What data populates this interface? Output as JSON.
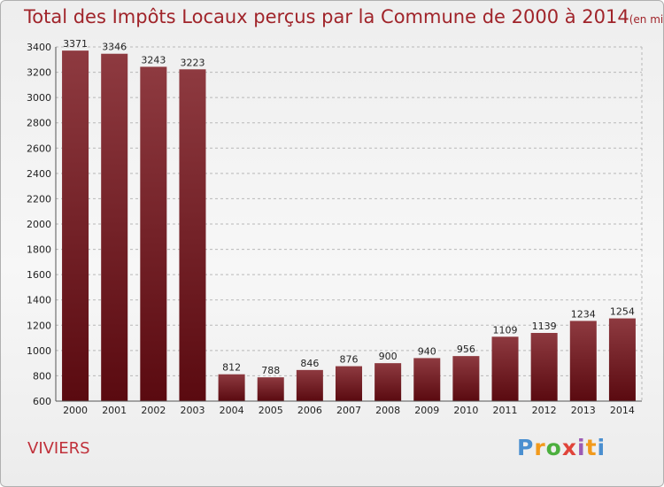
{
  "title": "Total des Impôts Locaux perçus par la Commune de 2000 à 2014",
  "unit_note": "(en milliers d'€)",
  "commune": "VIVIERS",
  "logo": {
    "text": "Proxiti",
    "letters": [
      "P",
      "r",
      "o",
      "x",
      "i",
      "t",
      "i"
    ],
    "colors": [
      "#4a8fd0",
      "#f29a1c",
      "#4caf3e",
      "#e0443a",
      "#9c5bb5",
      "#f29a1c",
      "#4a8fd0"
    ]
  },
  "colors": {
    "title": "#a0242a",
    "bar_top": "#8e3a40",
    "bar_bottom": "#5a0a10",
    "grid": "#b8b8b8"
  },
  "chart_data": {
    "type": "bar",
    "categories": [
      "2000",
      "2001",
      "2002",
      "2003",
      "2004",
      "2005",
      "2006",
      "2007",
      "2008",
      "2009",
      "2010",
      "2011",
      "2012",
      "2013",
      "2014"
    ],
    "values": [
      3371,
      3346,
      3243,
      3223,
      812,
      788,
      846,
      876,
      900,
      940,
      956,
      1109,
      1139,
      1234,
      1254
    ],
    "ylim": [
      600,
      3400
    ],
    "yticks": [
      600,
      800,
      1000,
      1200,
      1400,
      1600,
      1800,
      2000,
      2200,
      2400,
      2600,
      2800,
      3000,
      3200,
      3400
    ],
    "grid": true,
    "xlabel": "",
    "ylabel": ""
  }
}
